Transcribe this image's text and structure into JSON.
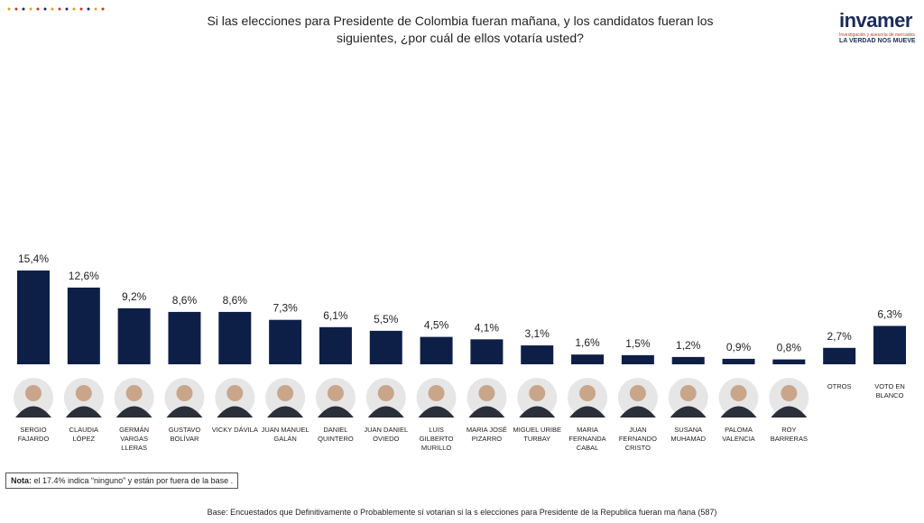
{
  "chart_data": {
    "type": "bar",
    "title": "Si las elecciones para Presidente de Colombia fueran mañana, y los candidatos fueran los siguientes, ¿por cuál de ellos votaría usted?",
    "categories": [
      "SERGIO FAJARDO",
      "CLAUDIA LÓPEZ",
      "GERMÁN VARGAS LLERAS",
      "GUSTAVO BOLÍVAR",
      "VICKY DÁVILA",
      "JUAN MANUEL GALÁN",
      "DANIEL QUINTERO",
      "JUAN DANIEL OVIEDO",
      "LUIS GILBERTO MURILLO",
      "MARIA JOSÉ PIZARRO",
      "MIGUEL URIBE TURBAY",
      "MARIA FERNANDA CABAL",
      "JUAN FERNANDO CRISTO",
      "SUSANA MUHAMAD",
      "PALOMA VALENCIA",
      "ROY BARRERAS",
      "OTROS",
      "VOTO EN BLANCO"
    ],
    "values": [
      15.4,
      12.6,
      9.2,
      8.6,
      8.6,
      7.3,
      6.1,
      5.5,
      4.5,
      4.1,
      3.1,
      1.6,
      1.5,
      1.2,
      0.9,
      0.8,
      2.7,
      6.3
    ],
    "value_labels": [
      "15,4%",
      "12,6%",
      "9,2%",
      "8,6%",
      "8,6%",
      "7,3%",
      "6,1%",
      "5,5%",
      "4,5%",
      "4,1%",
      "3,1%",
      "1,6%",
      "1,5%",
      "1,2%",
      "0,9%",
      "0,8%",
      "2,7%",
      "6,3%"
    ],
    "color": "#0e1f47",
    "note_label": "Nota:",
    "note_text": "el 17.4% indica “ninguno” y están por fuera de la base .",
    "base": "Base: Encuestados que Definitivamente o Probablemente sí votarian si la s elecciones para Presidente de la Republica fueran ma ñana (587)",
    "logo": "invamer",
    "logo_subtitle": "Investigación y asesoría de mercados",
    "logo_tagline": "LA VERDAD NOS MUEVE"
  }
}
